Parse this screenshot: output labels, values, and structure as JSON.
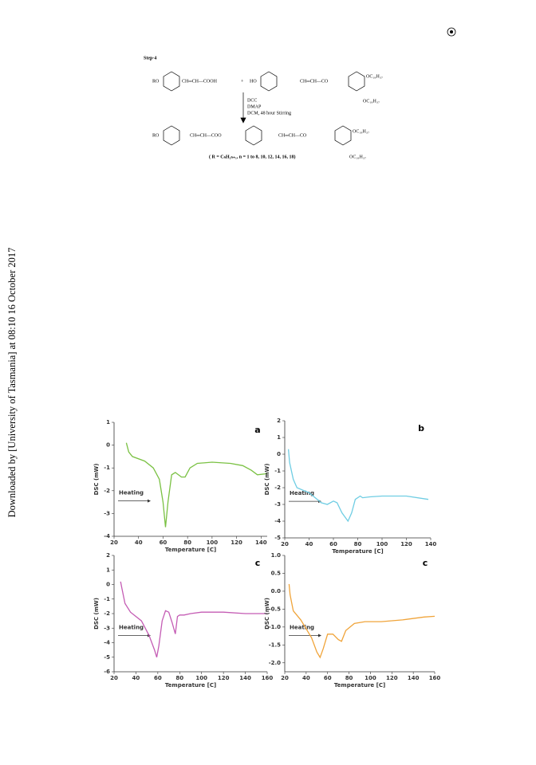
{
  "sidebar": "Downloaded by [University of Tasmania] at 08:10 16 October 2017",
  "scheme": {
    "step": "Step-4",
    "row1": [
      "RO",
      "CH═CH—COOH",
      "+",
      "HO",
      "CH═CH—CO",
      "OC₁₈H₃₇",
      "OC₁₈H₃₇"
    ],
    "reagents": [
      "DCC",
      "DMAP",
      "DCM, 48 hour Stirring"
    ],
    "row2": [
      "RO",
      "CH═CH—COO",
      "CH═CH—CO",
      "OC₁₈H₃₇",
      "OC₁₈H₃₇"
    ],
    "note": "( R = CₙH₂ₙ₊₁, n = 1 to 8, 10, 12, 14, 16, 18)"
  },
  "chart_data": [
    {
      "type": "line",
      "title": "a",
      "xlabel": "Temperature [C]",
      "ylabel": "DSC (mW)",
      "annotation": "Heating",
      "color": "#7ac143",
      "x": [
        30,
        32,
        35,
        45,
        52,
        57,
        60,
        62,
        64,
        67,
        70,
        75,
        78,
        82,
        88,
        100,
        115,
        125,
        132,
        137,
        145
      ],
      "values": [
        0.1,
        -0.3,
        -0.5,
        -0.7,
        -1.0,
        -1.5,
        -2.5,
        -3.6,
        -2.5,
        -1.3,
        -1.2,
        -1.4,
        -1.4,
        -1.0,
        -0.8,
        -0.75,
        -0.8,
        -0.9,
        -1.1,
        -1.3,
        -1.25
      ],
      "xlim": [
        20,
        145
      ],
      "ylim": [
        -4,
        1
      ],
      "xticks": [
        20,
        40,
        60,
        80,
        100,
        120,
        140
      ],
      "yticks": [
        -4,
        -3,
        -2,
        -1,
        0,
        1
      ]
    },
    {
      "type": "line",
      "title": "b",
      "xlabel": "Temperature [C]",
      "ylabel": "DSC (mW)",
      "annotation": "Heating",
      "color": "#6fcde3",
      "x": [
        23,
        24,
        27,
        30,
        40,
        50,
        55,
        60,
        63,
        67,
        72,
        75,
        78,
        82,
        84,
        90,
        100,
        120,
        138
      ],
      "values": [
        0.3,
        -0.5,
        -1.5,
        -2.0,
        -2.3,
        -2.9,
        -3.0,
        -2.8,
        -2.9,
        -3.5,
        -4.0,
        -3.5,
        -2.7,
        -2.5,
        -2.6,
        -2.55,
        -2.5,
        -2.5,
        -2.7
      ],
      "xlim": [
        20,
        140
      ],
      "ylim": [
        -5,
        2
      ],
      "xticks": [
        20,
        40,
        60,
        80,
        100,
        120,
        140
      ],
      "yticks": [
        -5,
        -4,
        -3,
        -2,
        -1,
        0,
        1,
        2
      ]
    },
    {
      "type": "line",
      "title": "c",
      "xlabel": "Temperature [C]",
      "ylabel": "DSC (mW)",
      "annotation": "Heating",
      "color": "#c45cb4",
      "x": [
        26,
        27,
        30,
        35,
        45,
        52,
        57,
        59,
        61,
        64,
        67,
        70,
        73,
        76,
        78,
        80,
        84,
        90,
        100,
        120,
        140,
        160
      ],
      "values": [
        0.2,
        -0.2,
        -1.3,
        -1.9,
        -2.5,
        -3.5,
        -4.5,
        -5.0,
        -4.2,
        -2.5,
        -1.8,
        -1.9,
        -2.6,
        -3.4,
        -2.2,
        -2.1,
        -2.1,
        -2.0,
        -1.9,
        -1.9,
        -2.0,
        -2.0
      ],
      "xlim": [
        20,
        160
      ],
      "ylim": [
        -6,
        2
      ],
      "xticks": [
        20,
        40,
        60,
        80,
        100,
        120,
        140,
        160
      ],
      "yticks": [
        -6,
        -5,
        -4,
        -3,
        -2,
        -1,
        0,
        1,
        2
      ]
    },
    {
      "type": "line",
      "title": "c",
      "xlabel": "Temperature [C]",
      "ylabel": "DSC (mW)",
      "annotation": "Heating",
      "color": "#f0a43a",
      "x": [
        24,
        25,
        28,
        35,
        45,
        50,
        53,
        56,
        60,
        65,
        70,
        73,
        77,
        85,
        95,
        110,
        130,
        150,
        160
      ],
      "values": [
        0.2,
        -0.1,
        -0.55,
        -0.8,
        -1.3,
        -1.7,
        -1.85,
        -1.6,
        -1.2,
        -1.2,
        -1.35,
        -1.4,
        -1.1,
        -0.9,
        -0.85,
        -0.85,
        -0.8,
        -0.72,
        -0.7
      ],
      "xlim": [
        20,
        160
      ],
      "ylim": [
        -2.25,
        1
      ],
      "xticks": [
        20,
        40,
        60,
        80,
        100,
        120,
        140,
        160
      ],
      "yticks": [
        {
          "value": -2,
          "label": "-2.0"
        },
        -1.5,
        {
          "value": -1,
          "label": "-1.0"
        },
        -0.5,
        {
          "value": 0,
          "label": "0.0"
        },
        0.5,
        {
          "value": 1,
          "label": "1.0"
        }
      ]
    }
  ]
}
